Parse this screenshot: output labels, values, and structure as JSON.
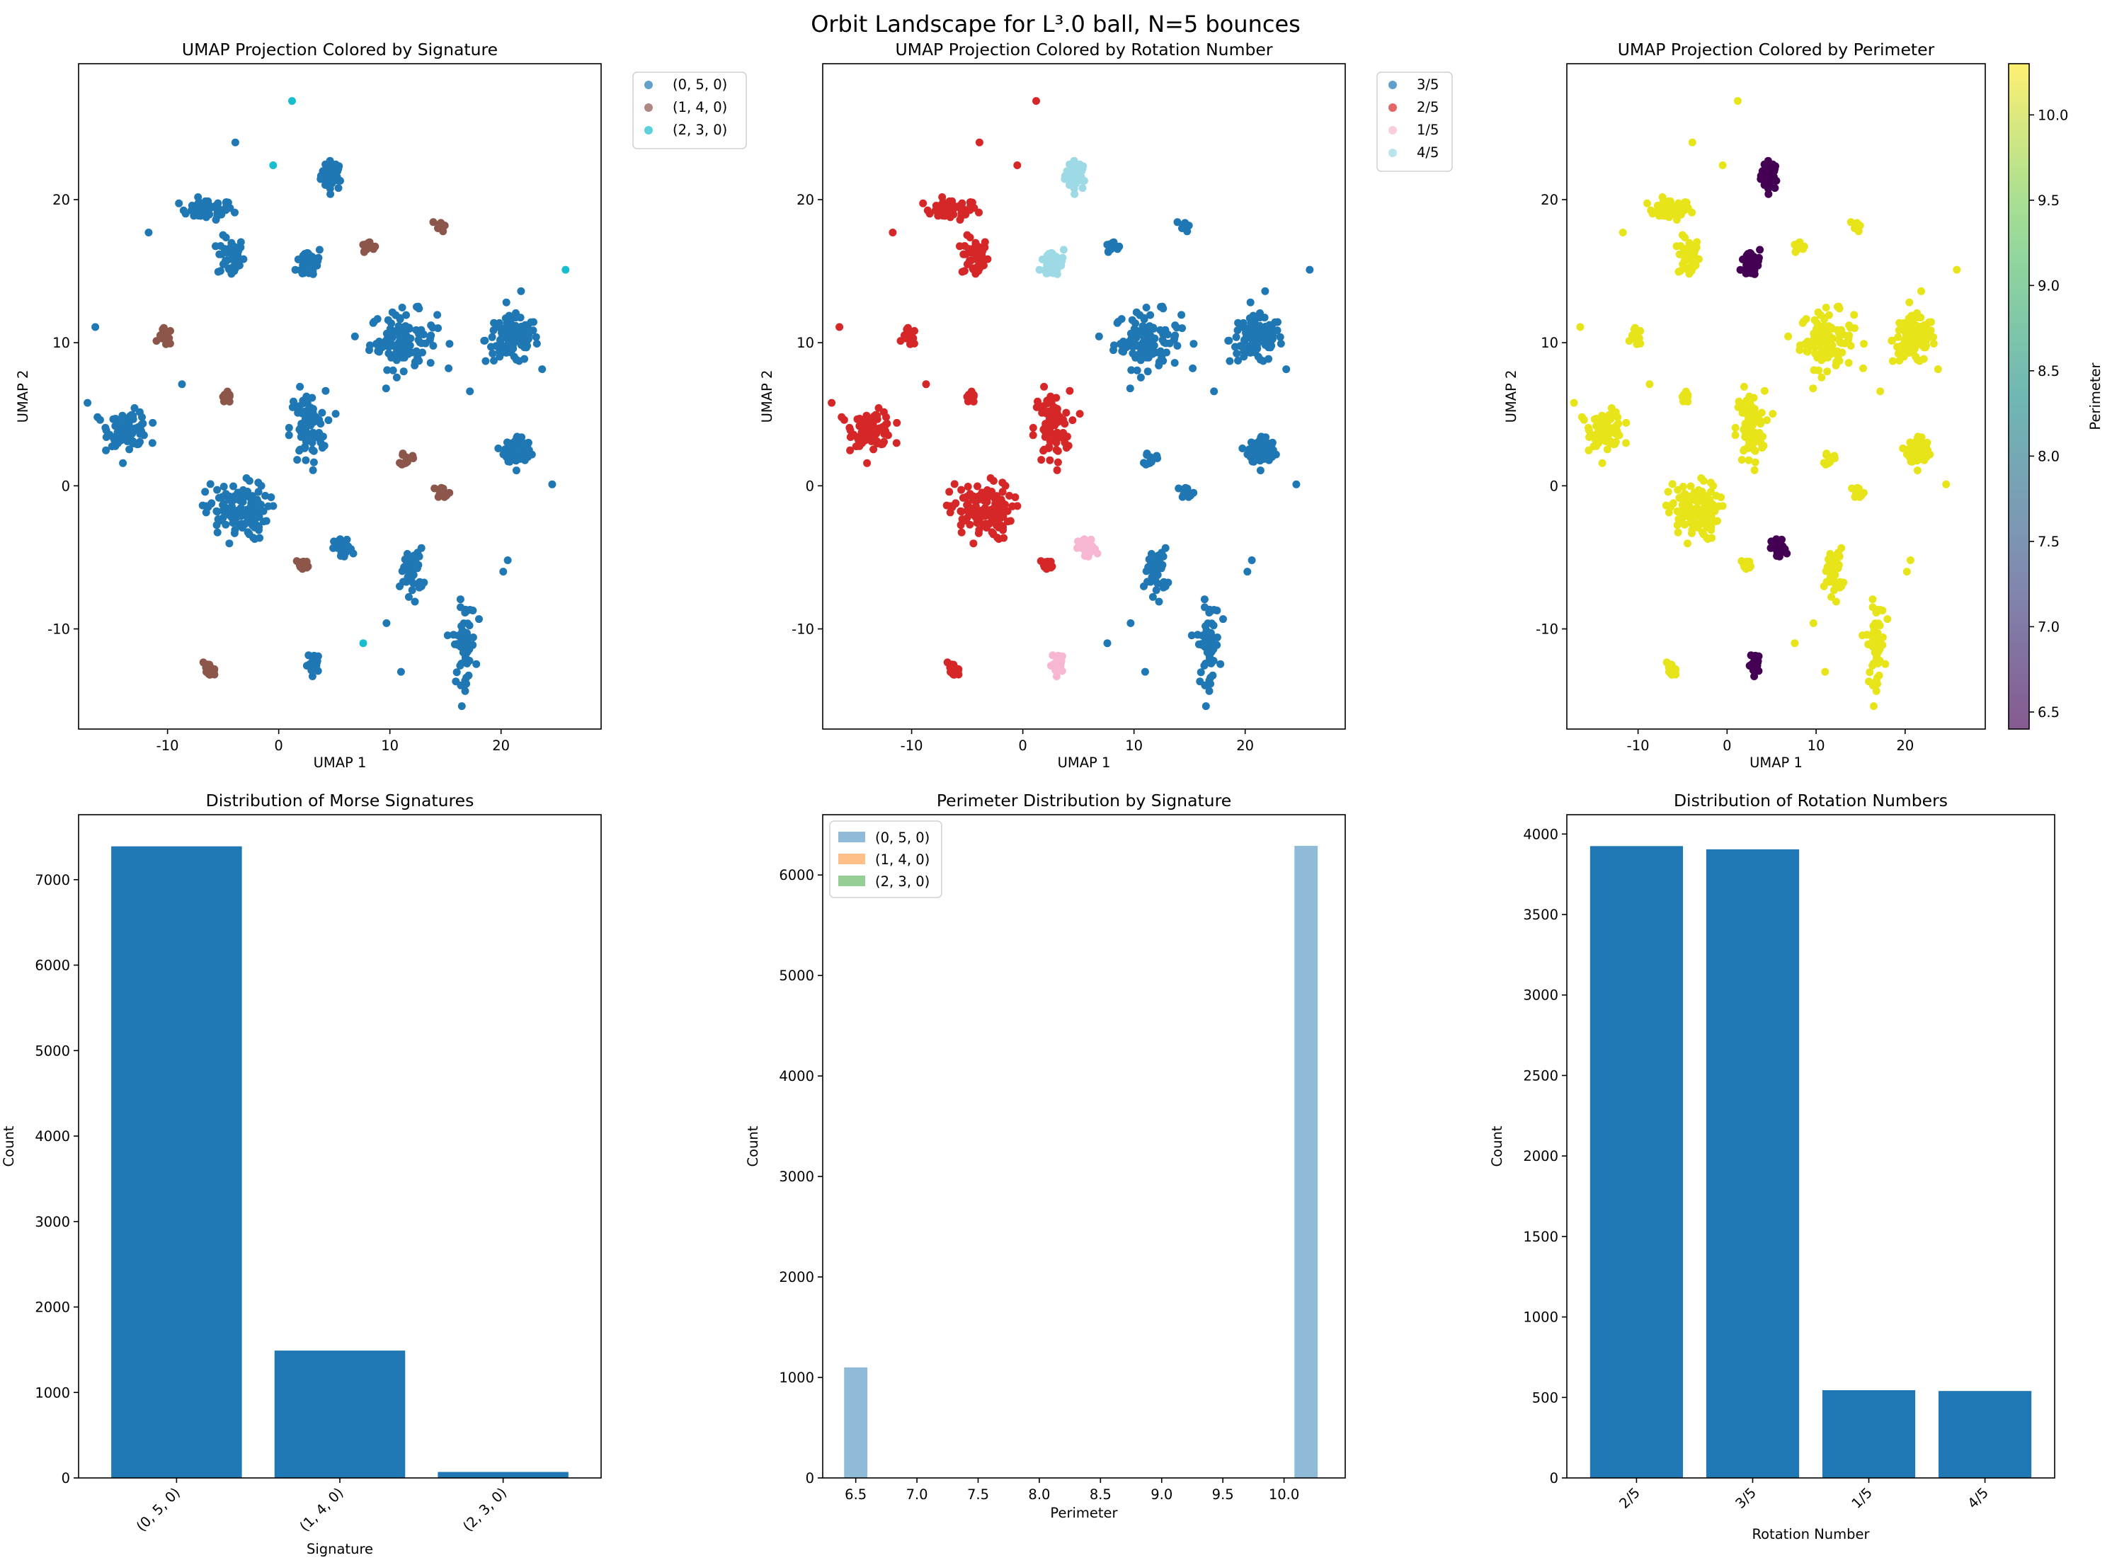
{
  "figure": {
    "title": "Orbit Landscape for L³.0 ball, N=5 bounces"
  },
  "colors": {
    "blue": "#1f77b4",
    "brown": "#8c564b",
    "cyan": "#17becf",
    "red": "#d62728",
    "pink": "#f7b6d2",
    "lightcyan": "#9edae5",
    "orange": "#ff7f0e",
    "green": "#2ca02c",
    "viridis_low": "#440154",
    "viridis_high": "#e7e419"
  },
  "chart_data": [
    {
      "id": "umap-signature",
      "type": "scatter",
      "title": "UMAP Projection Colored by Signature",
      "xlabel": "UMAP 1",
      "ylabel": "UMAP 2",
      "xlim": [
        -18,
        29
      ],
      "ylim": [
        -17,
        29.5
      ],
      "xticks": [
        -10,
        0,
        10,
        20
      ],
      "yticks": [
        -10,
        0,
        10,
        20
      ],
      "legend": {
        "placement": "outside-right",
        "entries": [
          "(0, 5, 0)",
          "(1, 4, 0)",
          "(2, 3, 0)"
        ]
      },
      "series": [
        {
          "name": "(0, 5, 0)",
          "color": "#1f77b4"
        },
        {
          "name": "(1, 4, 0)",
          "color": "#8c564b"
        },
        {
          "name": "(2, 3, 0)",
          "color": "#17becf"
        }
      ]
    },
    {
      "id": "umap-rotation",
      "type": "scatter",
      "title": "UMAP Projection Colored by Rotation Number",
      "xlabel": "UMAP 1",
      "ylabel": "UMAP 2",
      "xlim": [
        -18,
        29
      ],
      "ylim": [
        -17,
        29.5
      ],
      "xticks": [
        -10,
        0,
        10,
        20
      ],
      "yticks": [
        -10,
        0,
        10,
        20
      ],
      "legend": {
        "placement": "outside-right",
        "entries": [
          "3/5",
          "2/5",
          "1/5",
          "4/5"
        ]
      },
      "series": [
        {
          "name": "3/5",
          "color": "#1f77b4"
        },
        {
          "name": "2/5",
          "color": "#d62728"
        },
        {
          "name": "1/5",
          "color": "#f7b6d2"
        },
        {
          "name": "4/5",
          "color": "#9edae5"
        }
      ]
    },
    {
      "id": "umap-perimeter",
      "type": "scatter",
      "title": "UMAP Projection Colored by Perimeter",
      "xlabel": "UMAP 1",
      "ylabel": "UMAP 2",
      "xlim": [
        -18,
        29
      ],
      "ylim": [
        -17,
        29.5
      ],
      "xticks": [
        -10,
        0,
        10,
        20
      ],
      "yticks": [
        -10,
        0,
        10,
        20
      ],
      "colorbar": {
        "label": "Perimeter",
        "range": [
          6.4,
          10.3
        ],
        "ticks": [
          "6.5",
          "7.0",
          "7.5",
          "8.0",
          "8.5",
          "9.0",
          "9.5",
          "10.0"
        ]
      }
    },
    {
      "id": "bar-signatures",
      "type": "bar",
      "title": "Distribution of Morse Signatures",
      "xlabel": "Signature",
      "ylabel": "Count",
      "categories": [
        "(0, 5, 0)",
        "(1, 4, 0)",
        "(2, 3, 0)"
      ],
      "values": [
        7390,
        1490,
        70
      ],
      "ylim": [
        0,
        7760
      ],
      "yticks": [
        0,
        1000,
        2000,
        3000,
        4000,
        5000,
        6000,
        7000
      ]
    },
    {
      "id": "hist-perimeter",
      "type": "bar",
      "title": "Perimeter Distribution by Signature",
      "xlabel": "Perimeter",
      "ylabel": "Count",
      "xlim": [
        6.23,
        10.5
      ],
      "ylim": [
        0,
        6600
      ],
      "xticks": [
        "6.5",
        "7.0",
        "7.5",
        "8.0",
        "8.5",
        "9.0",
        "9.5",
        "10.0"
      ],
      "yticks": [
        0,
        1000,
        2000,
        3000,
        4000,
        5000,
        6000
      ],
      "legend": {
        "placement": "upper-left",
        "entries": [
          "(0, 5, 0)",
          "(1, 4, 0)",
          "(2, 3, 0)"
        ]
      },
      "series": [
        {
          "name": "(0, 5, 0)",
          "color": "#1f77b4",
          "bins": [
            {
              "x": 6.5,
              "value": 1100
            },
            {
              "x": 10.18,
              "value": 6290
            }
          ]
        },
        {
          "name": "(1, 4, 0)",
          "color": "#ff7f0e",
          "bins": []
        },
        {
          "name": "(2, 3, 0)",
          "color": "#2ca02c",
          "bins": []
        }
      ]
    },
    {
      "id": "bar-rotation",
      "type": "bar",
      "title": "Distribution of Rotation Numbers",
      "xlabel": "Rotation Number",
      "ylabel": "Count",
      "categories": [
        "2/5",
        "3/5",
        "1/5",
        "4/5"
      ],
      "values": [
        3925,
        3905,
        545,
        540
      ],
      "ylim": [
        0,
        4120
      ],
      "yticks": [
        0,
        500,
        1000,
        1500,
        2000,
        2500,
        3000,
        3500,
        4000
      ]
    }
  ]
}
